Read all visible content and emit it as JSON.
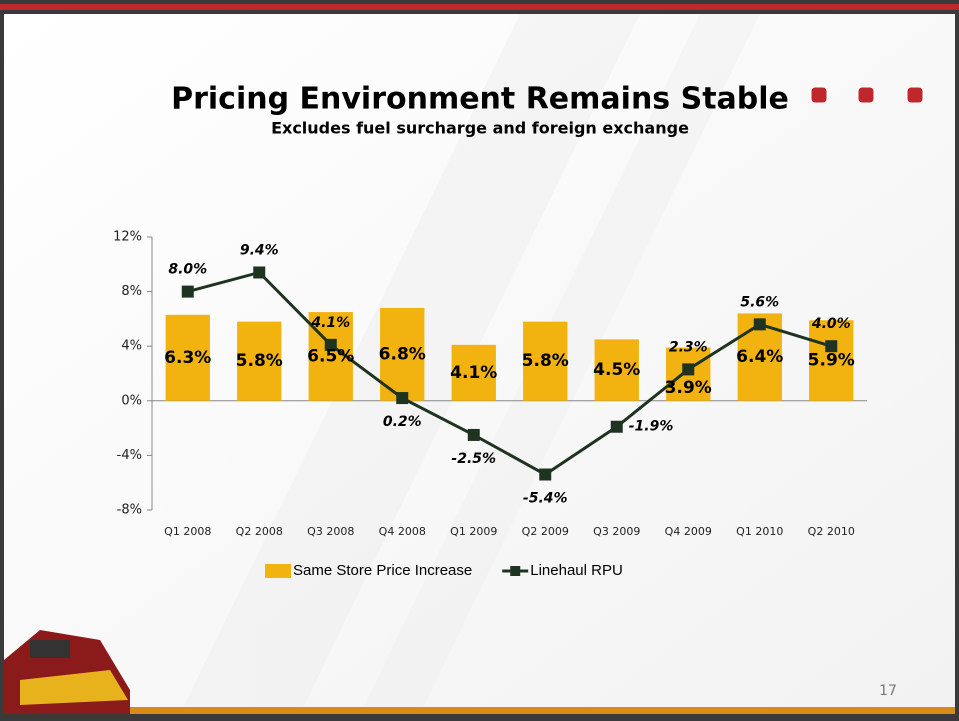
{
  "chart_data": {
    "type": "bar_line",
    "title": "Pricing Environment Remains Stable",
    "subtitle": "Excludes fuel surcharge and foreign exchange",
    "categories": [
      "Q1 2008",
      "Q2 2008",
      "Q3 2008",
      "Q4 2008",
      "Q1 2009",
      "Q2 2009",
      "Q3 2009",
      "Q4 2009",
      "Q1 2010",
      "Q2 2010"
    ],
    "series": [
      {
        "name": "Same Store Price Increase",
        "type": "bar",
        "color": "#f2b20f",
        "values": [
          6.3,
          5.8,
          6.5,
          6.8,
          4.1,
          5.8,
          4.5,
          3.9,
          6.4,
          5.9
        ],
        "value_labels": [
          "6.3%",
          "5.8%",
          "6.5%",
          "6.8%",
          "4.1%",
          "5.8%",
          "4.5%",
          "3.9%",
          "6.4%",
          "5.9%"
        ]
      },
      {
        "name": "Linehaul RPU",
        "type": "line",
        "color": "#1e3320",
        "values": [
          8.0,
          9.4,
          4.1,
          0.2,
          -2.5,
          -5.4,
          -1.9,
          2.3,
          5.6,
          4.0
        ],
        "value_labels": [
          "8.0%",
          "9.4%",
          "4.1%",
          "0.2%",
          "-2.5%",
          "-5.4%",
          "-1.9%",
          "2.3%",
          "5.6%",
          "4.0%"
        ]
      }
    ],
    "ylim": [
      -8,
      12
    ],
    "yticks": [
      {
        "value": 12,
        "label": "12%"
      },
      {
        "value": 8,
        "label": "8%"
      },
      {
        "value": 4,
        "label": "4%"
      },
      {
        "value": 0,
        "label": "0%"
      },
      {
        "value": -4,
        "label": "-4%"
      },
      {
        "value": -8,
        "label": "-8%"
      }
    ],
    "grid": false,
    "legend": "bottom"
  },
  "slide": {
    "page_number": "17"
  }
}
